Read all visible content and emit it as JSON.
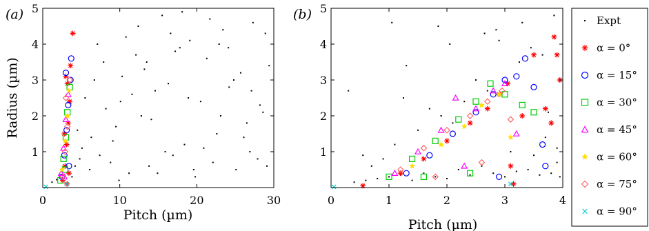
{
  "legend": {
    "entries": [
      {
        "label": "Expt",
        "marker": "dot",
        "color": "#000000"
      },
      {
        "label": "α = 0°",
        "marker": "asterisk",
        "color": "#ff0000"
      },
      {
        "label": "α = 15°",
        "marker": "circle",
        "color": "#0000ff"
      },
      {
        "label": "α = 30°",
        "marker": "square",
        "color": "#00cc00"
      },
      {
        "label": "α = 45°",
        "marker": "triangle",
        "color": "#ff00ff"
      },
      {
        "label": "α = 60°",
        "marker": "star",
        "color": "#ffdd00"
      },
      {
        "label": "α = 75°",
        "marker": "diamond",
        "color": "#ff6666"
      },
      {
        "label": "α = 90°",
        "marker": "x",
        "color": "#00cccc"
      }
    ]
  },
  "chart_data": [
    {
      "type": "scatter",
      "panel_label": "(a)",
      "xlabel": "Pitch (µm)",
      "ylabel": "Radius (µm)",
      "xlim": [
        0,
        30
      ],
      "ylim": [
        0,
        5
      ],
      "xticks": [
        "0",
        "10",
        "20",
        "30"
      ],
      "yticks": [
        "1",
        "2",
        "3",
        "4",
        "5"
      ],
      "grid": false,
      "series": [
        {
          "name": "Expt",
          "color": "#000000",
          "x": [
            1.2,
            1.8,
            2.5,
            4.2,
            5.1,
            6.3,
            7.4,
            8.2,
            9.5,
            10.3,
            11.6,
            12.4,
            13.2,
            14.1,
            15.5,
            16.3,
            17.2,
            18.4,
            19.1,
            20.5,
            21.3,
            22.6,
            23.4,
            24.2,
            25.7,
            26.5,
            27.3,
            28.6,
            29.4,
            4.8,
            6.1,
            8.8,
            11.2,
            13.8,
            16.9,
            19.8,
            22.1,
            25.1,
            27.9,
            5.5,
            7.9,
            10.8,
            14.6,
            17.8,
            21.7,
            24.8,
            28.2,
            9.1,
            12.8,
            15.9,
            18.9,
            23.1,
            26.9,
            3.8,
            4.5,
            7.1,
            10.1,
            12.1,
            14.9,
            18.1,
            20.9,
            24.1,
            27.1,
            29.1,
            6.7,
            9.9,
            13.5,
            16.6,
            19.6,
            22.9,
            26.1,
            28.9
          ],
          "y": [
            0.15,
            0.22,
            0.35,
            0.6,
            1.1,
            1.4,
            0.9,
            2.2,
            1.7,
            3.1,
            2.6,
            4.5,
            3.3,
            1.9,
            4.8,
            2.9,
            3.8,
            1.2,
            4.1,
            2.4,
            3.6,
            1.5,
            4.4,
            2.8,
            3.2,
            1.8,
            4.6,
            2.1,
            3.4,
            0.8,
            0.5,
            0.7,
            0.4,
            0.6,
            0.9,
            0.3,
            0.7,
            0.5,
            0.8,
            2.5,
            3.5,
            4.2,
            2.7,
            3.9,
            4.7,
            3.0,
            2.3,
            1.3,
            2.0,
            1.0,
            2.5,
            2.0,
            1.0,
            0.3,
            1.6,
            4.0,
            2.4,
            3.7,
            0.4,
            4.9,
            1.1,
            3.9,
            2.7,
            0.6,
            3.0,
            0.2,
            3.5,
            4.3,
            0.5,
            4.0,
            1.4,
            4.3
          ]
        },
        {
          "name": "α = 0°",
          "color": "#ff0000",
          "x": [
            2.6,
            2.9,
            3.1,
            3.3,
            3.5,
            3.2,
            3.0,
            3.4,
            2.8,
            3.6,
            3.9,
            3.15
          ],
          "y": [
            0.2,
            0.6,
            1.2,
            1.8,
            2.4,
            2.9,
            3.1,
            0.4,
            1.5,
            3.4,
            4.3,
            0.1
          ]
        },
        {
          "name": "α = 15°",
          "color": "#0000ff",
          "x": [
            2.5,
            2.8,
            3.1,
            3.3,
            3.6,
            3.0,
            3.4,
            3.7
          ],
          "y": [
            0.3,
            0.9,
            1.6,
            2.3,
            3.0,
            3.2,
            0.6,
            3.6
          ]
        },
        {
          "name": "α = 30°",
          "color": "#00cc00",
          "x": [
            2.3,
            2.7,
            3.0,
            3.2,
            3.5,
            2.9
          ],
          "y": [
            0.2,
            0.8,
            1.4,
            2.1,
            2.8,
            0.5
          ]
        },
        {
          "name": "α = 45°",
          "color": "#ff00ff",
          "x": [
            2.4,
            2.7,
            3.0,
            3.3,
            2.8
          ],
          "y": [
            0.4,
            1.1,
            1.9,
            2.6,
            0.3
          ]
        },
        {
          "name": "α = 60°",
          "color": "#ffdd00",
          "x": [
            2.5,
            2.9,
            3.2,
            3.4
          ],
          "y": [
            0.5,
            1.3,
            2.0,
            2.7
          ]
        },
        {
          "name": "α = 75°",
          "color": "#ff6666",
          "x": [
            2.6,
            2.9,
            3.2,
            3.0,
            3.5
          ],
          "y": [
            0.3,
            1.0,
            1.7,
            2.5,
            3.0
          ]
        },
        {
          "name": "α = 90°",
          "color": "#00cccc",
          "x": [
            0.4,
            3.1
          ],
          "y": [
            0.02,
            0.1
          ]
        }
      ]
    },
    {
      "type": "scatter",
      "panel_label": "(b)",
      "xlabel": "Pitch (µm)",
      "ylabel": "",
      "xlim": [
        0,
        4
      ],
      "ylim": [
        0,
        5
      ],
      "xticks": [
        "0",
        "1",
        "2",
        "3",
        "4"
      ],
      "yticks": [
        "1",
        "2",
        "3",
        "4",
        "5"
      ],
      "grid": false,
      "series": [
        {
          "name": "Expt",
          "color": "#000000",
          "x": [
            0.4,
            0.6,
            0.8,
            1.0,
            1.2,
            1.4,
            1.6,
            1.8,
            2.0,
            2.2,
            2.4,
            2.6,
            2.8,
            3.0,
            3.2,
            3.4,
            3.6,
            3.8,
            3.95,
            0.9,
            1.1,
            1.5,
            1.9,
            2.3,
            2.7,
            3.1,
            3.5,
            3.9,
            0.3,
            1.3,
            1.7,
            2.1,
            2.5,
            2.9,
            3.3,
            3.7,
            0.7,
            1.05,
            3.85,
            3.45,
            2.65,
            1.85,
            3.75,
            3.25,
            0.55,
            1.25,
            2.05,
            2.85,
            3.65,
            3.9
          ],
          "y": [
            0.15,
            0.2,
            0.25,
            0.3,
            0.35,
            0.2,
            0.4,
            0.3,
            0.25,
            0.5,
            0.35,
            0.6,
            0.4,
            0.3,
            0.45,
            0.5,
            0.35,
            0.4,
            0.3,
            0.8,
            1.2,
            1.6,
            2.0,
            2.4,
            2.7,
            1.0,
            0.9,
            0.7,
            2.7,
            3.4,
            2.2,
            1.8,
            3.0,
            4.1,
            4.6,
            1.4,
            0.6,
            4.6,
            4.8,
            3.9,
            4.3,
            4.5,
            2.1,
            3.5,
            0.9,
            2.5,
            4.0,
            4.4,
            3.7,
            1.1
          ]
        },
        {
          "name": "α = 0°",
          "color": "#ff0000",
          "x": [
            0.55,
            1.2,
            1.6,
            2.0,
            2.4,
            2.7,
            2.9,
            3.05,
            3.1,
            3.15,
            3.3,
            3.5,
            3.7,
            3.85,
            3.9,
            3.95,
            3.8
          ],
          "y": [
            0.05,
            0.4,
            0.8,
            1.3,
            1.8,
            2.2,
            2.6,
            2.9,
            0.6,
            0.1,
            2.0,
            3.7,
            2.2,
            4.2,
            3.7,
            3.0,
            1.8
          ]
        },
        {
          "name": "α = 15°",
          "color": "#0000ff",
          "x": [
            1.3,
            1.7,
            2.1,
            2.5,
            2.8,
            3.0,
            3.2,
            3.35,
            3.5,
            3.65,
            3.7,
            2.9
          ],
          "y": [
            0.4,
            0.9,
            1.5,
            2.1,
            2.6,
            3.0,
            3.1,
            3.6,
            2.8,
            1.2,
            0.6,
            0.3
          ]
        },
        {
          "name": "α = 30°",
          "color": "#00cc00",
          "x": [
            1.0,
            1.4,
            1.8,
            2.2,
            2.5,
            2.75,
            3.0,
            3.3,
            3.5,
            2.4,
            1.6
          ],
          "y": [
            0.3,
            0.8,
            1.3,
            1.9,
            2.4,
            2.9,
            2.6,
            2.3,
            2.1,
            0.4,
            0.3
          ]
        },
        {
          "name": "α = 45°",
          "color": "#ff00ff",
          "x": [
            1.1,
            1.5,
            1.9,
            2.15,
            2.5,
            2.8,
            3.0,
            3.2,
            2.3
          ],
          "y": [
            0.4,
            1.0,
            1.6,
            2.5,
            2.2,
            2.7,
            2.9,
            1.5,
            0.6
          ]
        },
        {
          "name": "α = 60°",
          "color": "#ffdd00",
          "x": [
            1.4,
            1.9,
            2.3,
            2.6,
            2.9,
            3.1
          ],
          "y": [
            0.6,
            1.2,
            1.7,
            2.3,
            2.6,
            1.4
          ]
        },
        {
          "name": "α = 75°",
          "color": "#ff6666",
          "x": [
            1.2,
            1.6,
            2.0,
            2.4,
            2.7,
            2.95,
            3.1,
            2.6,
            1.8
          ],
          "y": [
            0.5,
            1.1,
            1.6,
            2.0,
            2.4,
            2.7,
            1.9,
            0.7,
            0.3
          ]
        },
        {
          "name": "α = 90°",
          "color": "#00cccc",
          "x": [
            0.05,
            3.1
          ],
          "y": [
            0.02,
            0.1
          ]
        }
      ]
    }
  ]
}
